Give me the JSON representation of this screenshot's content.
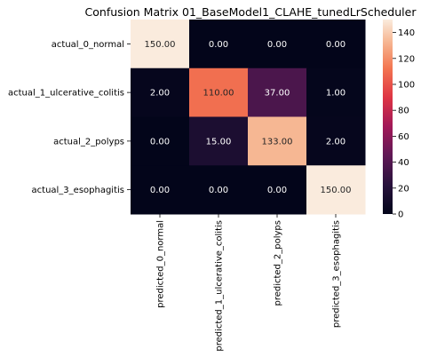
{
  "chart_data": {
    "type": "heatmap",
    "title": "Confusion Matrix 01_BaseModel1_CLAHE_tunedLrScheduler",
    "xlabel": "",
    "ylabel": "",
    "row_labels": [
      "actual_0_normal",
      "actual_1_ulcerative_colitis",
      "actual_2_polyps",
      "actual_3_esophagitis"
    ],
    "col_labels": [
      "predicted_0_normal",
      "predicted_1_ulcerative_colitis",
      "predicted_2_polyps",
      "predicted_3_esophagitis"
    ],
    "values": [
      [
        150,
        0,
        0,
        0
      ],
      [
        2,
        110,
        37,
        1
      ],
      [
        0,
        15,
        133,
        2
      ],
      [
        0,
        0,
        0,
        150
      ]
    ],
    "cell_labels": [
      [
        "150.00",
        "0.00",
        "0.00",
        "0.00"
      ],
      [
        "2.00",
        "110.00",
        "37.00",
        "1.00"
      ],
      [
        "0.00",
        "15.00",
        "133.00",
        "2.00"
      ],
      [
        "0.00",
        "0.00",
        "0.00",
        "150.00"
      ]
    ],
    "colormap": "rocket",
    "vmin": 0,
    "vmax": 150,
    "colorbar_ticks": [
      0,
      20,
      40,
      60,
      80,
      100,
      120,
      140
    ],
    "colorbar_tick_labels": [
      "0",
      "20",
      "40",
      "60",
      "80",
      "100",
      "120",
      "140"
    ]
  }
}
